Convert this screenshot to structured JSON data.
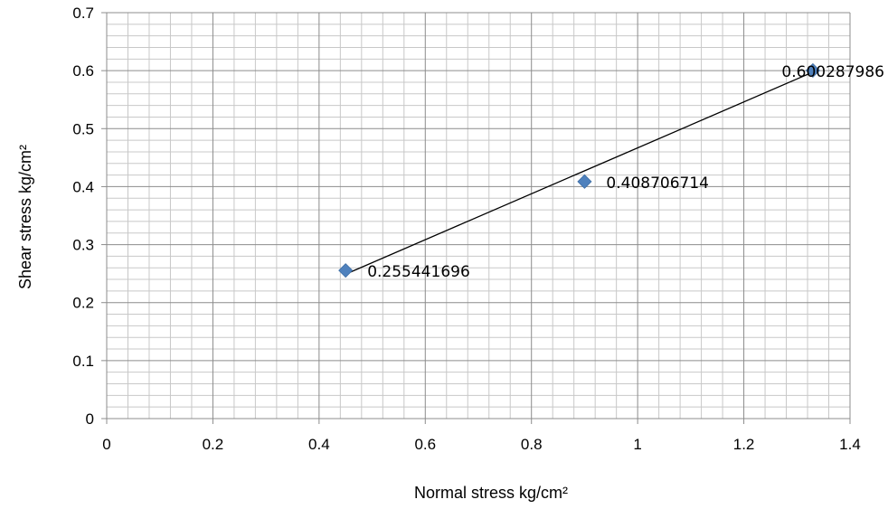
{
  "chart_data": {
    "type": "scatter",
    "title": "",
    "xlabel": "Normal stress    kg/cm²",
    "ylabel": "Shear stress     kg/cm²",
    "xlim": [
      0,
      1.4
    ],
    "ylim": [
      0,
      0.7
    ],
    "x_major_step": 0.2,
    "y_major_step": 0.1,
    "x_minor_per_major": 5,
    "y_minor_per_major": 5,
    "x_tick_labels": [
      "0",
      "0.2",
      "0.4",
      "0.6",
      "0.8",
      "1",
      "1.2",
      "1.4"
    ],
    "y_tick_labels": [
      "0",
      "0.1",
      "0.2",
      "0.3",
      "0.4",
      "0.5",
      "0.6",
      "0.7"
    ],
    "grid": true,
    "legend": "none",
    "series": [
      {
        "marker": "diamond",
        "color": "#4F81BD",
        "x": [
          0.45,
          0.9,
          1.33
        ],
        "y": [
          0.255441696,
          0.408706714,
          0.600287986
        ],
        "data_labels": [
          "0.255441696",
          "0.408706714",
          "0.600287986"
        ]
      }
    ],
    "trendline": {
      "type": "linear",
      "color": "#000000",
      "x": [
        0.45,
        1.33
      ],
      "y": [
        0.2491,
        0.5975
      ]
    }
  }
}
